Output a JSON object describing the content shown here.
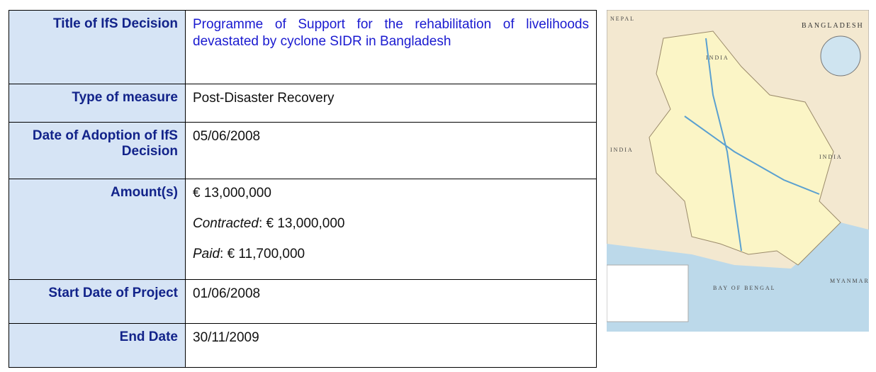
{
  "table": {
    "rows": [
      {
        "label": "Title of IfS Decision",
        "lines": [
          {
            "text": "Programme of Support for the rehabilitation of livelihoods devastated by cyclone SIDR in Bangladesh"
          }
        ]
      },
      {
        "label": "Type of measure",
        "lines": [
          {
            "text": "Post-Disaster Recovery"
          }
        ]
      },
      {
        "label": "Date of Adoption of IfS Decision",
        "lines": [
          {
            "text": "05/06/2008"
          }
        ]
      },
      {
        "label": "Amount(s)",
        "lines": [
          {
            "text": "€ 13,000,000"
          },
          {
            "em": "Contracted",
            "text": ": € 13,000,000"
          },
          {
            "em": "Paid",
            "text": ": € 11,700,000"
          }
        ]
      },
      {
        "label": "Start Date of Project",
        "lines": [
          {
            "text": "01/06/2008"
          }
        ]
      },
      {
        "label": "End Date",
        "lines": [
          {
            "text": "30/11/2009"
          }
        ]
      }
    ]
  },
  "map": {
    "title": "BANGLADESH",
    "labels": [
      "NEPAL",
      "INDIA",
      "INDIA",
      "INDIA",
      "MYANMAR",
      "BAY OF BENGAL"
    ]
  }
}
